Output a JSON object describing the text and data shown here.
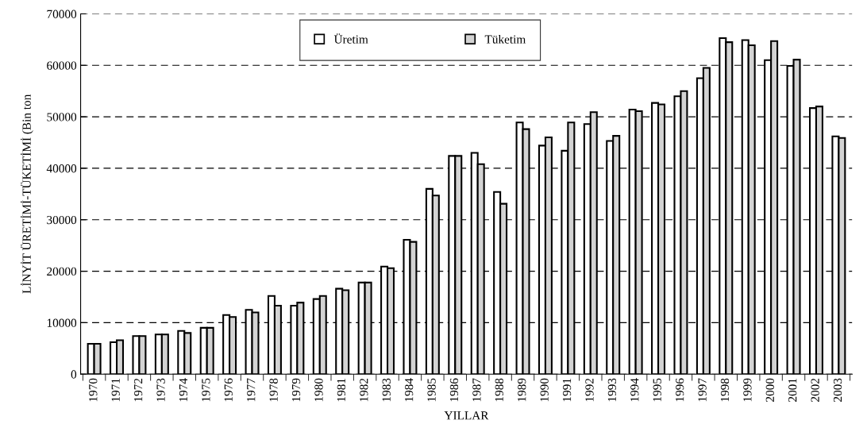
{
  "chart_data": {
    "type": "bar",
    "xlabel": "YILLAR",
    "ylabel": "LİNYİT ÜRETİMİ-TÜKETİMİ (Bin ton",
    "categories": [
      "1970",
      "1971",
      "1972",
      "1973",
      "1974",
      "1975",
      "1976",
      "1977",
      "1978",
      "1979",
      "1980",
      "1981",
      "1982",
      "1983",
      "1984",
      "1985",
      "1986",
      "1987",
      "1988",
      "1989",
      "1990",
      "1991",
      "1992",
      "1993",
      "1994",
      "1995",
      "1996",
      "1997",
      "1998",
      "1999",
      "2000",
      "2001",
      "2002",
      "2003"
    ],
    "series": [
      {
        "name": "Üretim",
        "color": "#ffffff",
        "values": [
          5900,
          6200,
          7400,
          7700,
          8400,
          9000,
          11500,
          12500,
          15200,
          13300,
          14600,
          16600,
          17800,
          20900,
          26100,
          36000,
          42400,
          43000,
          35400,
          48900,
          44400,
          43400,
          48600,
          45300,
          51400,
          52700,
          54000,
          57500,
          65300,
          64900,
          61000,
          59900,
          51700,
          46200
        ]
      },
      {
        "name": "Tüketim",
        "color": "#d3d3d3",
        "values": [
          5900,
          6600,
          7400,
          7700,
          8000,
          9000,
          11100,
          12000,
          13300,
          13900,
          15200,
          16300,
          17800,
          20600,
          25700,
          34700,
          42400,
          40800,
          33100,
          47600,
          46000,
          48900,
          50900,
          46300,
          51100,
          52400,
          55000,
          59500,
          64500,
          63900,
          64700,
          61100,
          52000,
          45900
        ]
      }
    ],
    "ylim": [
      0,
      70000
    ],
    "yticks": [
      0,
      10000,
      20000,
      30000,
      40000,
      50000,
      60000,
      70000
    ],
    "grid": "y",
    "legend": "top"
  }
}
